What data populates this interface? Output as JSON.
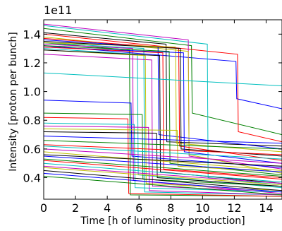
{
  "chart_data": {
    "type": "line",
    "title": "",
    "xlabel": "Time [h of luminosity production]",
    "ylabel": "Intensity [proton per bunch]",
    "y_multiplier": "1e11",
    "xlim": [
      0,
      15
    ],
    "ylim": [
      0.25,
      1.5
    ],
    "xticks": [
      0,
      2,
      4,
      6,
      8,
      10,
      12,
      14
    ],
    "xtick_labels": [
      "0",
      "2",
      "4",
      "6",
      "8",
      "10",
      "12",
      "14"
    ],
    "yticks": [
      0.4,
      0.6,
      0.8,
      1.0,
      1.2,
      1.4
    ],
    "ytick_labels": [
      "0.4",
      "0.6",
      "0.8",
      "1.0",
      "1.2",
      "1.4"
    ],
    "grid": false,
    "legend": "none",
    "series": [
      {
        "color": "#0000ff",
        "x": [
          0,
          12.1,
          12.15,
          15
        ],
        "y": [
          1.32,
          1.21,
          0.95,
          0.88
        ]
      },
      {
        "color": "#008000",
        "x": [
          0,
          9.3,
          9.35,
          15
        ],
        "y": [
          1.44,
          1.32,
          0.85,
          0.7
        ]
      },
      {
        "color": "#ff0000",
        "x": [
          0,
          12.2,
          12.25,
          15
        ],
        "y": [
          1.4,
          1.26,
          0.72,
          0.65
        ]
      },
      {
        "color": "#00bfbf",
        "x": [
          0,
          10.3,
          10.35,
          15
        ],
        "y": [
          1.46,
          1.33,
          0.4,
          0.35
        ]
      },
      {
        "color": "#bf00bf",
        "x": [
          0,
          9.1,
          9.15,
          15
        ],
        "y": [
          1.47,
          1.36,
          0.55,
          0.46
        ]
      },
      {
        "color": "#bfbf00",
        "x": [
          0,
          9.1,
          9.15,
          15
        ],
        "y": [
          1.38,
          1.28,
          0.56,
          0.43
        ]
      },
      {
        "color": "#000000",
        "x": [
          0,
          7.7,
          7.75,
          15
        ],
        "y": [
          1.41,
          1.33,
          0.65,
          0.62
        ]
      },
      {
        "color": "#0000ff",
        "x": [
          0,
          7.2,
          7.25,
          15
        ],
        "y": [
          1.36,
          1.31,
          0.7,
          0.6
        ]
      },
      {
        "color": "#008000",
        "x": [
          0,
          5.4,
          5.45,
          15
        ],
        "y": [
          1.34,
          1.29,
          0.28,
          0.27
        ]
      },
      {
        "color": "#ff0000",
        "x": [
          0,
          8.5,
          8.55,
          15
        ],
        "y": [
          1.37,
          1.3,
          0.62,
          0.52
        ]
      },
      {
        "color": "#00bfbf",
        "x": [
          0,
          6.3,
          6.35,
          15
        ],
        "y": [
          1.34,
          1.3,
          0.3,
          0.28
        ]
      },
      {
        "color": "#bf00bf",
        "x": [
          0,
          5.6,
          5.65,
          15
        ],
        "y": [
          1.33,
          1.3,
          0.38,
          0.29
        ]
      },
      {
        "color": "#bfbf00",
        "x": [
          0,
          8.3,
          8.35,
          15
        ],
        "y": [
          1.34,
          1.31,
          0.64,
          0.58
        ]
      },
      {
        "color": "#000000",
        "x": [
          0,
          8.6,
          8.65,
          15
        ],
        "y": [
          1.35,
          1.3,
          0.6,
          0.55
        ]
      },
      {
        "color": "#0000ff",
        "x": [
          0,
          8.8,
          8.85,
          15
        ],
        "y": [
          1.31,
          1.27,
          0.58,
          0.5
        ]
      },
      {
        "color": "#008000",
        "x": [
          0,
          7.9,
          7.95,
          15
        ],
        "y": [
          1.32,
          1.28,
          0.5,
          0.42
        ]
      },
      {
        "color": "#ff0000",
        "x": [
          0,
          7.5,
          7.55,
          15
        ],
        "y": [
          1.31,
          1.27,
          0.46,
          0.4
        ]
      },
      {
        "color": "#00bfbf",
        "x": [
          0,
          5.9,
          5.95,
          15
        ],
        "y": [
          1.3,
          1.26,
          0.42,
          0.33
        ]
      },
      {
        "color": "#bf00bf",
        "x": [
          0,
          6.8,
          6.85,
          15
        ],
        "y": [
          1.26,
          1.22,
          0.34,
          0.3
        ]
      },
      {
        "color": "#bfbf00",
        "x": [
          0,
          6.4,
          6.45,
          15
        ],
        "y": [
          1.29,
          1.25,
          0.36,
          0.31
        ]
      },
      {
        "color": "#000000",
        "x": [
          0,
          7.3,
          7.35,
          15
        ],
        "y": [
          1.29,
          1.25,
          0.44,
          0.36
        ]
      },
      {
        "color": "#00bfbf",
        "x": [
          0,
          15
        ],
        "y": [
          1.13,
          1.04
        ]
      },
      {
        "color": "#0000ff",
        "x": [
          0,
          5.5,
          5.55,
          15
        ],
        "y": [
          0.94,
          0.92,
          0.55,
          0.47
        ]
      },
      {
        "color": "#008000",
        "x": [
          0,
          6.2,
          6.25,
          15
        ],
        "y": [
          0.85,
          0.84,
          0.39,
          0.34
        ]
      },
      {
        "color": "#ff0000",
        "x": [
          0,
          5.3,
          5.35,
          15
        ],
        "y": [
          0.82,
          0.81,
          0.29,
          0.27
        ]
      },
      {
        "color": "#00bfbf",
        "x": [
          0,
          5.7,
          5.75,
          15
        ],
        "y": [
          0.78,
          0.77,
          0.33,
          0.3
        ]
      },
      {
        "color": "#bf00bf",
        "x": [
          0,
          6.6,
          6.65,
          15
        ],
        "y": [
          0.76,
          0.75,
          0.31,
          0.28
        ]
      },
      {
        "color": "#bfbf00",
        "x": [
          0,
          8.4,
          8.45,
          15
        ],
        "y": [
          0.74,
          0.73,
          0.48,
          0.44
        ]
      },
      {
        "color": "#000000",
        "x": [
          0,
          7.1,
          7.15,
          15
        ],
        "y": [
          0.72,
          0.71,
          0.4,
          0.34
        ]
      },
      {
        "color": "#0000ff",
        "x": [
          0,
          15
        ],
        "y": [
          0.69,
          0.64
        ]
      },
      {
        "color": "#008000",
        "x": [
          0,
          15
        ],
        "y": [
          0.66,
          0.6
        ]
      },
      {
        "color": "#ff0000",
        "x": [
          0,
          15
        ],
        "y": [
          0.63,
          0.56
        ]
      },
      {
        "color": "#00bfbf",
        "x": [
          0,
          15
        ],
        "y": [
          0.62,
          0.53
        ]
      },
      {
        "color": "#bf00bf",
        "x": [
          0,
          15
        ],
        "y": [
          0.6,
          0.5
        ]
      },
      {
        "color": "#bfbf00",
        "x": [
          0,
          15
        ],
        "y": [
          0.58,
          0.45
        ]
      },
      {
        "color": "#000000",
        "x": [
          0,
          15
        ],
        "y": [
          0.56,
          0.48
        ]
      },
      {
        "color": "#0000ff",
        "x": [
          0,
          15
        ],
        "y": [
          0.55,
          0.44
        ]
      },
      {
        "color": "#008000",
        "x": [
          0,
          15
        ],
        "y": [
          0.53,
          0.41
        ]
      },
      {
        "color": "#ff0000",
        "x": [
          0,
          15
        ],
        "y": [
          0.52,
          0.39
        ]
      },
      {
        "color": "#00bfbf",
        "x": [
          0,
          15
        ],
        "y": [
          0.5,
          0.37
        ]
      },
      {
        "color": "#bf00bf",
        "x": [
          0,
          15
        ],
        "y": [
          0.48,
          0.36
        ]
      },
      {
        "color": "#bfbf00",
        "x": [
          0,
          15
        ],
        "y": [
          0.47,
          0.35
        ]
      },
      {
        "color": "#000000",
        "x": [
          0,
          15
        ],
        "y": [
          0.45,
          0.31
        ]
      },
      {
        "color": "#0000ff",
        "x": [
          0,
          15
        ],
        "y": [
          0.43,
          0.3
        ]
      },
      {
        "color": "#008000",
        "x": [
          0,
          15
        ],
        "y": [
          0.41,
          0.28
        ]
      }
    ]
  }
}
